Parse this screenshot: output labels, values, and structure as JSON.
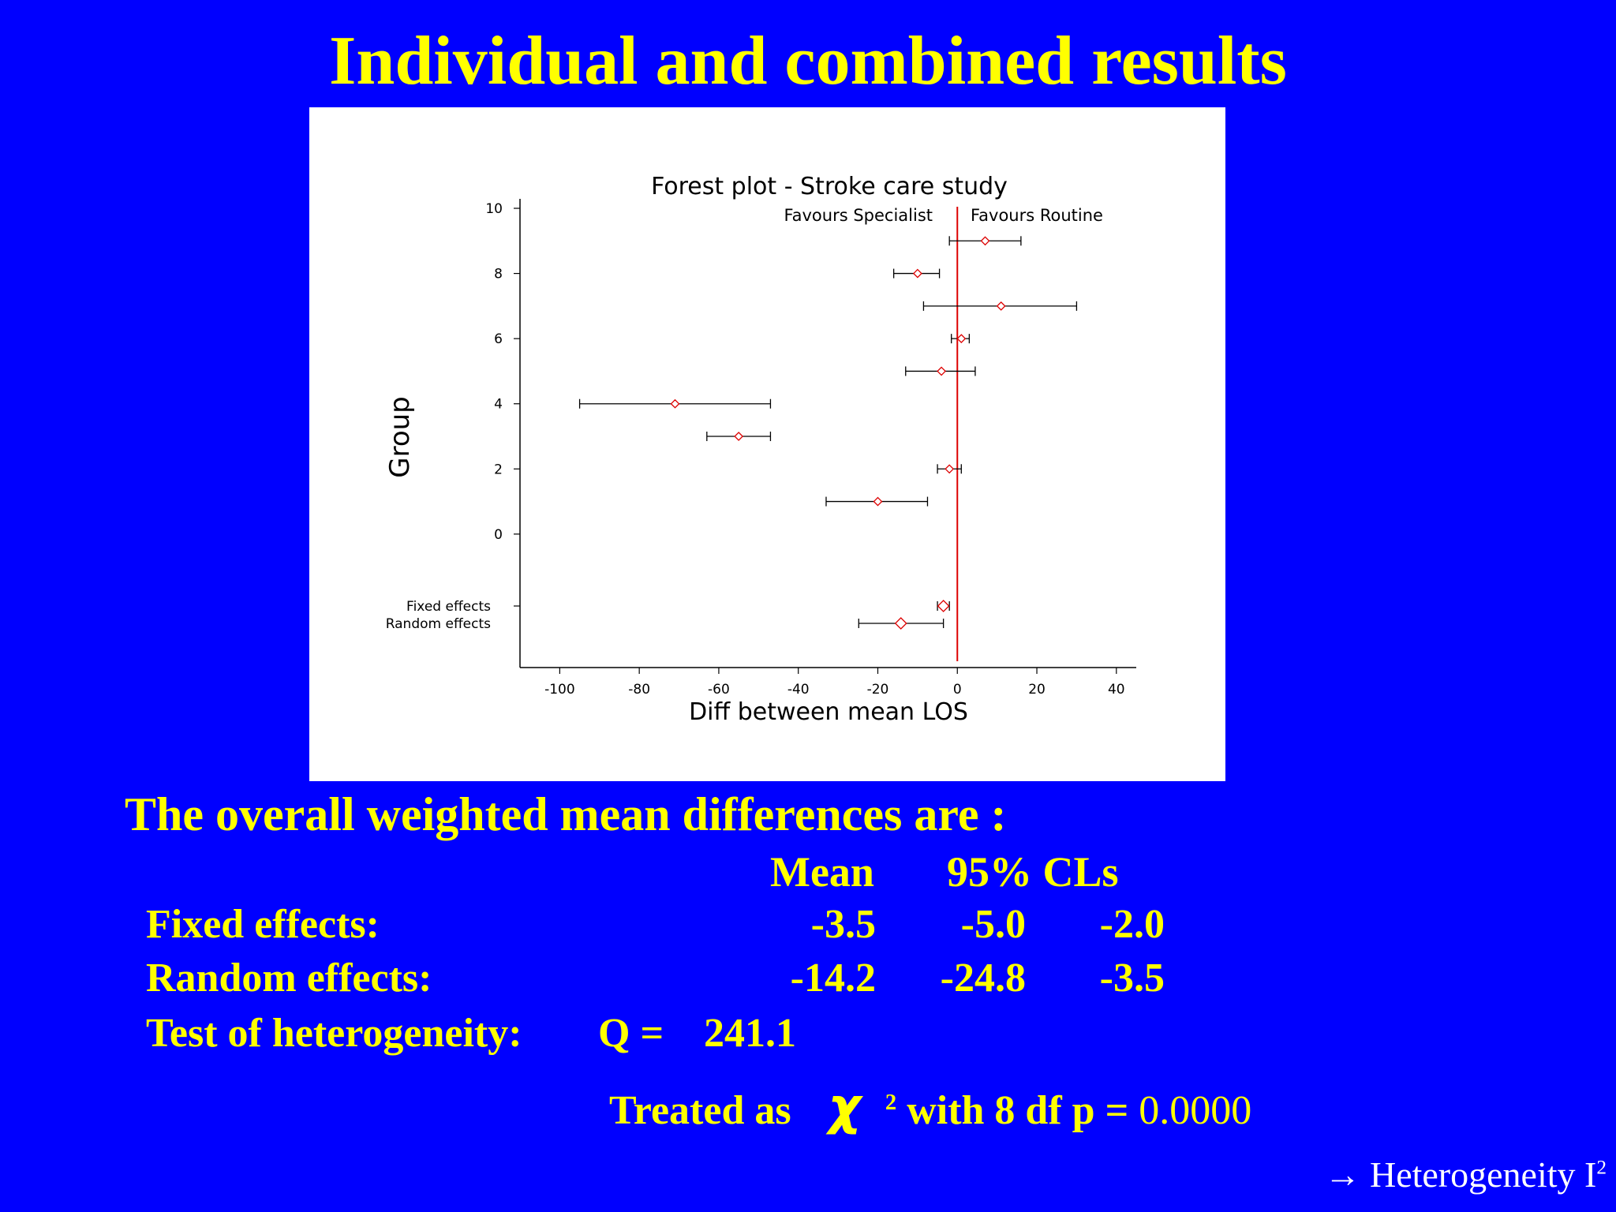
{
  "slide": {
    "title": "Individual and combined results",
    "summary_heading": "The overall weighted mean differences are :",
    "col_mean": "Mean",
    "col_cls": "95% CLs",
    "rows": [
      {
        "label": "Fixed  effects:",
        "mean": "-3.5",
        "lo": "-5.0",
        "hi": "-2.0"
      },
      {
        "label": "Random effects:",
        "mean": "-14.2",
        "lo": "-24.8",
        "hi": "-3.5"
      }
    ],
    "heterogeneity_label": "Test of heterogeneity:",
    "q_label": "Q =",
    "q_value": "241.1",
    "treated_as": "Treated as",
    "chi_symbol": "χ",
    "chi_sup": "2",
    "with_df": "with 8 df  p =",
    "p_value": "0.0000",
    "footer_arrow": "→",
    "footer_text": "Heterogeneity I",
    "footer_sup": "2"
  },
  "chart_data": {
    "type": "forest",
    "title": "Forest plot - Stroke care study",
    "xlabel": "Diff between mean LOS",
    "ylabel": "Group",
    "left_annotation": "Favours Specialist",
    "right_annotation": "Favours Routine",
    "xlim": [
      -110,
      45
    ],
    "ylim": [
      -4,
      10
    ],
    "x_ticks": [
      -100,
      -80,
      -60,
      -40,
      -20,
      0,
      20,
      40
    ],
    "y_ticks": [
      0,
      2,
      4,
      6,
      8,
      10
    ],
    "reference_line": 0,
    "marker_color": "#DD0000",
    "reference_color": "#DD0000",
    "studies": [
      {
        "group": 9,
        "estimate": 7,
        "lower": -2,
        "upper": 16
      },
      {
        "group": 8,
        "estimate": -10,
        "lower": -16,
        "upper": -4.5
      },
      {
        "group": 7,
        "estimate": 11,
        "lower": -8.5,
        "upper": 30
      },
      {
        "group": 6,
        "estimate": 1,
        "lower": -1.5,
        "upper": 3
      },
      {
        "group": 5,
        "estimate": -4,
        "lower": -13,
        "upper": 4.5
      },
      {
        "group": 4,
        "estimate": -71,
        "lower": -95,
        "upper": -47
      },
      {
        "group": 3,
        "estimate": -55,
        "lower": -63,
        "upper": -47
      },
      {
        "group": 2,
        "estimate": -2,
        "lower": -5,
        "upper": 1
      },
      {
        "group": 1,
        "estimate": -20,
        "lower": -33,
        "upper": -7.5
      }
    ],
    "pooled": [
      {
        "label": "Fixed  effects",
        "y": -2,
        "estimate": -3.5,
        "lower": -5.0,
        "upper": -2.0
      },
      {
        "label": "Random effects",
        "y": -2.5,
        "estimate": -14.2,
        "lower": -24.8,
        "upper": -3.5
      }
    ]
  }
}
